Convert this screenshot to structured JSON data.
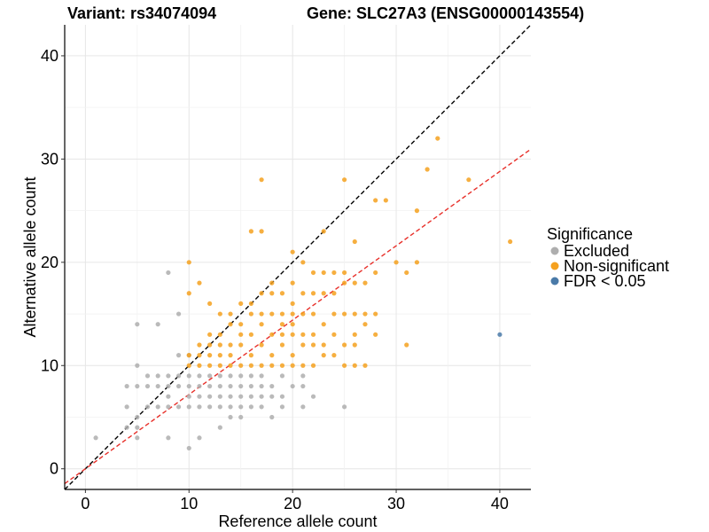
{
  "chart_data": {
    "type": "scatter",
    "title_left": "Variant: rs34074094",
    "title_right": "Gene: SLC27A3 (ENSG00000143554)",
    "xlabel": "Reference allele count",
    "ylabel": "Alternative allele count",
    "xlim": [
      -2,
      43
    ],
    "ylim": [
      -2,
      43
    ],
    "xticks": [
      0,
      10,
      20,
      30,
      40
    ],
    "yticks": [
      0,
      10,
      20,
      30,
      40
    ],
    "grid": true,
    "legend": {
      "title": "Significance",
      "position": "right",
      "entries": [
        {
          "label": "Excluded",
          "color": "#AEAEAE"
        },
        {
          "label": "Non-significant",
          "color": "#F5A11F"
        },
        {
          "label": "FDR < 0.05",
          "color": "#4A7AA8"
        }
      ]
    },
    "reference_lines": [
      {
        "slope": 1.0,
        "intercept": 0,
        "color": "#000000",
        "style": "dashed"
      },
      {
        "slope": 0.72,
        "intercept": 0,
        "color": "#E8302A",
        "style": "dashed"
      }
    ],
    "series": [
      {
        "name": "Excluded",
        "color": "#AEAEAE",
        "points": [
          [
            1,
            3
          ],
          [
            4,
            4
          ],
          [
            4,
            6
          ],
          [
            4,
            8
          ],
          [
            5,
            3
          ],
          [
            5,
            4
          ],
          [
            5,
            5
          ],
          [
            5,
            8
          ],
          [
            5,
            10
          ],
          [
            5,
            14
          ],
          [
            6,
            6
          ],
          [
            6,
            8
          ],
          [
            6,
            9
          ],
          [
            7,
            6
          ],
          [
            7,
            8
          ],
          [
            7,
            9
          ],
          [
            7,
            14
          ],
          [
            8,
            3
          ],
          [
            8,
            6
          ],
          [
            8,
            7
          ],
          [
            8,
            8
          ],
          [
            8,
            9
          ],
          [
            8,
            19
          ],
          [
            9,
            6
          ],
          [
            9,
            8
          ],
          [
            9,
            9
          ],
          [
            9,
            11
          ],
          [
            9,
            15
          ],
          [
            10,
            2
          ],
          [
            10,
            6
          ],
          [
            10,
            7
          ],
          [
            10,
            8
          ],
          [
            10,
            9
          ],
          [
            10,
            11
          ],
          [
            11,
            3
          ],
          [
            11,
            6
          ],
          [
            11,
            7
          ],
          [
            11,
            8
          ],
          [
            11,
            9
          ],
          [
            12,
            6
          ],
          [
            12,
            7
          ],
          [
            12,
            8
          ],
          [
            12,
            9
          ],
          [
            13,
            4
          ],
          [
            13,
            6
          ],
          [
            13,
            7
          ],
          [
            13,
            8
          ],
          [
            13,
            9
          ],
          [
            14,
            5
          ],
          [
            14,
            6
          ],
          [
            14,
            7
          ],
          [
            14,
            8
          ],
          [
            14,
            9
          ],
          [
            15,
            5
          ],
          [
            15,
            6
          ],
          [
            15,
            7
          ],
          [
            15,
            8
          ],
          [
            15,
            9
          ],
          [
            16,
            6
          ],
          [
            16,
            7
          ],
          [
            16,
            8
          ],
          [
            16,
            9
          ],
          [
            17,
            6
          ],
          [
            17,
            7
          ],
          [
            17,
            8
          ],
          [
            17,
            9
          ],
          [
            18,
            5
          ],
          [
            18,
            7
          ],
          [
            18,
            8
          ],
          [
            19,
            6
          ],
          [
            19,
            7
          ],
          [
            19,
            9
          ],
          [
            20,
            8
          ],
          [
            21,
            6
          ],
          [
            21,
            8
          ],
          [
            21,
            9
          ],
          [
            22,
            7
          ],
          [
            25,
            6
          ]
        ]
      },
      {
        "name": "Non-significant",
        "color": "#F5A11F",
        "points": [
          [
            10,
            10
          ],
          [
            10,
            11
          ],
          [
            10,
            17
          ],
          [
            10,
            20
          ],
          [
            11,
            10
          ],
          [
            11,
            11
          ],
          [
            11,
            12
          ],
          [
            11,
            18
          ],
          [
            12,
            10
          ],
          [
            12,
            11
          ],
          [
            12,
            12
          ],
          [
            12,
            13
          ],
          [
            12,
            16
          ],
          [
            13,
            10
          ],
          [
            13,
            11
          ],
          [
            13,
            12
          ],
          [
            13,
            13
          ],
          [
            13,
            15
          ],
          [
            14,
            10
          ],
          [
            14,
            11
          ],
          [
            14,
            12
          ],
          [
            14,
            14
          ],
          [
            14,
            15
          ],
          [
            15,
            10
          ],
          [
            15,
            12
          ],
          [
            15,
            13
          ],
          [
            15,
            14
          ],
          [
            15,
            16
          ],
          [
            16,
            10
          ],
          [
            16,
            11
          ],
          [
            16,
            13
          ],
          [
            16,
            15
          ],
          [
            16,
            16
          ],
          [
            16,
            23
          ],
          [
            17,
            10
          ],
          [
            17,
            12
          ],
          [
            17,
            14
          ],
          [
            17,
            15
          ],
          [
            17,
            17
          ],
          [
            17,
            23
          ],
          [
            17,
            28
          ],
          [
            18,
            10
          ],
          [
            18,
            11
          ],
          [
            18,
            13
          ],
          [
            18,
            15
          ],
          [
            18,
            17
          ],
          [
            18,
            18
          ],
          [
            19,
            10
          ],
          [
            19,
            12
          ],
          [
            19,
            13
          ],
          [
            19,
            14
          ],
          [
            19,
            15
          ],
          [
            19,
            17
          ],
          [
            20,
            10
          ],
          [
            20,
            11
          ],
          [
            20,
            13
          ],
          [
            20,
            14
          ],
          [
            20,
            15
          ],
          [
            20,
            16
          ],
          [
            20,
            18
          ],
          [
            20,
            21
          ],
          [
            21,
            10
          ],
          [
            21,
            12
          ],
          [
            21,
            13
          ],
          [
            21,
            15
          ],
          [
            21,
            17
          ],
          [
            21,
            20
          ],
          [
            22,
            10
          ],
          [
            22,
            12
          ],
          [
            22,
            13
          ],
          [
            22,
            15
          ],
          [
            22,
            17
          ],
          [
            22,
            19
          ],
          [
            23,
            11
          ],
          [
            23,
            12
          ],
          [
            23,
            14
          ],
          [
            23,
            17
          ],
          [
            23,
            19
          ],
          [
            23,
            23
          ],
          [
            24,
            11
          ],
          [
            24,
            13
          ],
          [
            24,
            15
          ],
          [
            24,
            17
          ],
          [
            24,
            19
          ],
          [
            25,
            10
          ],
          [
            25,
            12
          ],
          [
            25,
            15
          ],
          [
            25,
            18
          ],
          [
            25,
            19
          ],
          [
            25,
            28
          ],
          [
            26,
            10
          ],
          [
            26,
            12
          ],
          [
            26,
            13
          ],
          [
            26,
            15
          ],
          [
            26,
            18
          ],
          [
            26,
            22
          ],
          [
            27,
            10
          ],
          [
            27,
            14
          ],
          [
            27,
            15
          ],
          [
            27,
            18
          ],
          [
            28,
            13
          ],
          [
            28,
            15
          ],
          [
            28,
            19
          ],
          [
            28,
            26
          ],
          [
            29,
            26
          ],
          [
            30,
            20
          ],
          [
            31,
            12
          ],
          [
            31,
            19
          ],
          [
            32,
            20
          ],
          [
            32,
            25
          ],
          [
            33,
            29
          ],
          [
            34,
            32
          ],
          [
            37,
            28
          ],
          [
            41,
            22
          ]
        ]
      },
      {
        "name": "FDR < 0.05",
        "color": "#4A7AA8",
        "points": [
          [
            40,
            13
          ]
        ]
      }
    ]
  }
}
